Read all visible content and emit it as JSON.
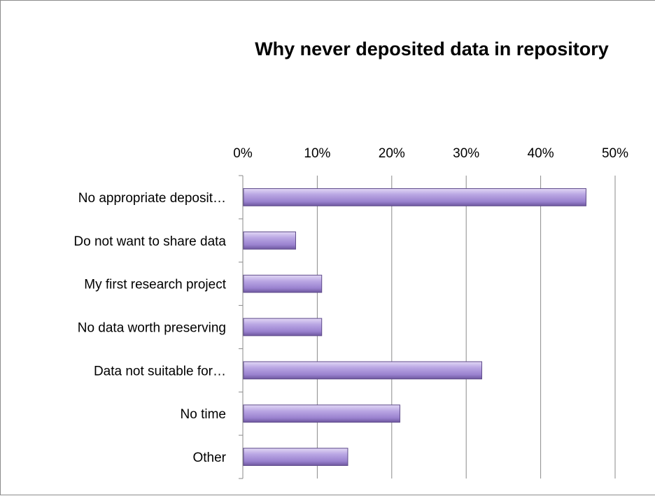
{
  "chart_data": {
    "type": "bar",
    "orientation": "horizontal",
    "title": "Why never deposited data in repository",
    "categories": [
      "No appropriate deposit…",
      "Do not want to share data",
      "My first research project",
      "No data worth preserving",
      "Data  not suitable for…",
      "No time",
      "Other"
    ],
    "values": [
      46,
      7,
      10.5,
      10.5,
      32,
      21,
      14
    ],
    "unit": "%",
    "xlim": [
      0,
      50
    ],
    "xticks": [
      "0%",
      "10%",
      "20%",
      "30%",
      "40%",
      "50%"
    ],
    "x_axis_position": "top",
    "grid": true,
    "bar_color": "#a58fd6",
    "legend": "none"
  }
}
